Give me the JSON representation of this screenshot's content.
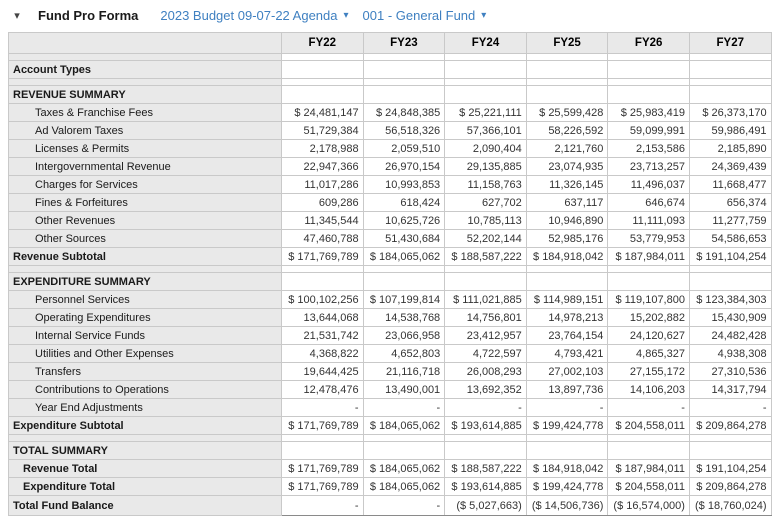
{
  "header": {
    "collapse_icon": "▾",
    "title": "Fund Pro Forma",
    "budget_selector": {
      "label": "2023 Budget 09-07-22 Agenda",
      "caret": "▾"
    },
    "fund_selector": {
      "label": "001 - General Fund",
      "caret": "▾"
    }
  },
  "colors": {
    "link_blue": "#3f80c1",
    "header_bg": "#e9e9e9",
    "label_col_bg": "#e9e9e9",
    "grid_border": "#c9c9c9",
    "emphasis_border": "#8a8a8a"
  },
  "table": {
    "columns": [
      "FY22",
      "FY23",
      "FY24",
      "FY25",
      "FY26",
      "FY27"
    ],
    "rows": [
      {
        "type": "spacer",
        "label": "",
        "values": [
          "",
          "",
          "",
          "",
          "",
          ""
        ]
      },
      {
        "type": "group",
        "label": "Account Types",
        "values": [
          "",
          "",
          "",
          "",
          "",
          ""
        ]
      },
      {
        "type": "spacer",
        "label": "",
        "values": [
          "",
          "",
          "",
          "",
          "",
          ""
        ]
      },
      {
        "type": "section",
        "label": "REVENUE SUMMARY",
        "values": [
          "",
          "",
          "",
          "",
          "",
          ""
        ]
      },
      {
        "type": "item",
        "label": "Taxes & Franchise Fees",
        "values": [
          "$ 24,481,147",
          "$ 24,848,385",
          "$ 25,221,111",
          "$ 25,599,428",
          "$ 25,983,419",
          "$ 26,373,170"
        ]
      },
      {
        "type": "item",
        "label": "Ad Valorem Taxes",
        "values": [
          "51,729,384",
          "56,518,326",
          "57,366,101",
          "58,226,592",
          "59,099,991",
          "59,986,491"
        ]
      },
      {
        "type": "item",
        "label": "Licenses & Permits",
        "values": [
          "2,178,988",
          "2,059,510",
          "2,090,404",
          "2,121,760",
          "2,153,586",
          "2,185,890"
        ]
      },
      {
        "type": "item",
        "label": "Intergovernmental Revenue",
        "values": [
          "22,947,366",
          "26,970,154",
          "29,135,885",
          "23,074,935",
          "23,713,257",
          "24,369,439"
        ]
      },
      {
        "type": "item",
        "label": "Charges for Services",
        "values": [
          "11,017,286",
          "10,993,853",
          "11,158,763",
          "11,326,145",
          "11,496,037",
          "11,668,477"
        ]
      },
      {
        "type": "item",
        "label": "Fines & Forfeitures",
        "values": [
          "609,286",
          "618,424",
          "627,702",
          "637,117",
          "646,674",
          "656,374"
        ]
      },
      {
        "type": "item",
        "label": "Other Revenues",
        "values": [
          "11,345,544",
          "10,625,726",
          "10,785,113",
          "10,946,890",
          "11,111,093",
          "11,277,759"
        ]
      },
      {
        "type": "item",
        "label": "Other Sources",
        "values": [
          "47,460,788",
          "51,430,684",
          "52,202,144",
          "52,985,176",
          "53,779,953",
          "54,586,653"
        ]
      },
      {
        "type": "subtotal",
        "label": "Revenue Subtotal",
        "values": [
          "$ 171,769,789",
          "$ 184,065,062",
          "$ 188,587,222",
          "$ 184,918,042",
          "$ 187,984,011",
          "$ 191,104,254"
        ]
      },
      {
        "type": "spacer",
        "label": "",
        "values": [
          "",
          "",
          "",
          "",
          "",
          ""
        ]
      },
      {
        "type": "section",
        "label": "EXPENDITURE SUMMARY",
        "values": [
          "",
          "",
          "",
          "",
          "",
          ""
        ]
      },
      {
        "type": "item",
        "label": "Personnel Services",
        "values": [
          "$ 100,102,256",
          "$ 107,199,814",
          "$ 111,021,885",
          "$ 114,989,151",
          "$ 119,107,800",
          "$ 123,384,303"
        ]
      },
      {
        "type": "item",
        "label": "Operating Expenditures",
        "values": [
          "13,644,068",
          "14,538,768",
          "14,756,801",
          "14,978,213",
          "15,202,882",
          "15,430,909"
        ]
      },
      {
        "type": "item",
        "label": "Internal Service Funds",
        "values": [
          "21,531,742",
          "23,066,958",
          "23,412,957",
          "23,764,154",
          "24,120,627",
          "24,482,428"
        ]
      },
      {
        "type": "item",
        "label": "Utilities and Other Expenses",
        "values": [
          "4,368,822",
          "4,652,803",
          "4,722,597",
          "4,793,421",
          "4,865,327",
          "4,938,308"
        ]
      },
      {
        "type": "item",
        "label": "Transfers",
        "values": [
          "19,644,425",
          "21,116,718",
          "26,008,293",
          "27,002,103",
          "27,155,172",
          "27,310,536"
        ]
      },
      {
        "type": "item",
        "label": "Contributions to Operations",
        "values": [
          "12,478,476",
          "13,490,001",
          "13,692,352",
          "13,897,736",
          "14,106,203",
          "14,317,794"
        ]
      },
      {
        "type": "item",
        "label": "Year End Adjustments",
        "values": [
          "-",
          "-",
          "-",
          "-",
          "-",
          "-"
        ]
      },
      {
        "type": "subtotal",
        "label": "Expenditure Subtotal",
        "values": [
          "$ 171,769,789",
          "$ 184,065,062",
          "$ 193,614,885",
          "$ 199,424,778",
          "$ 204,558,011",
          "$ 209,864,278"
        ]
      },
      {
        "type": "spacer",
        "label": "",
        "values": [
          "",
          "",
          "",
          "",
          "",
          ""
        ]
      },
      {
        "type": "section",
        "label": "TOTAL SUMMARY",
        "values": [
          "",
          "",
          "",
          "",
          "",
          ""
        ]
      },
      {
        "type": "total-item",
        "label": "Revenue Total",
        "values": [
          "$ 171,769,789",
          "$ 184,065,062",
          "$ 188,587,222",
          "$ 184,918,042",
          "$ 187,984,011",
          "$ 191,104,254"
        ]
      },
      {
        "type": "total-item",
        "label": "Expenditure Total",
        "values": [
          "$ 171,769,789",
          "$ 184,065,062",
          "$ 193,614,885",
          "$ 199,424,778",
          "$ 204,558,011",
          "$ 209,864,278"
        ]
      },
      {
        "type": "grand",
        "label": "Total Fund Balance",
        "values": [
          "-",
          "-",
          "($ 5,027,663)",
          "($ 14,506,736)",
          "($ 16,574,000)",
          "($ 18,760,024)"
        ]
      }
    ]
  }
}
